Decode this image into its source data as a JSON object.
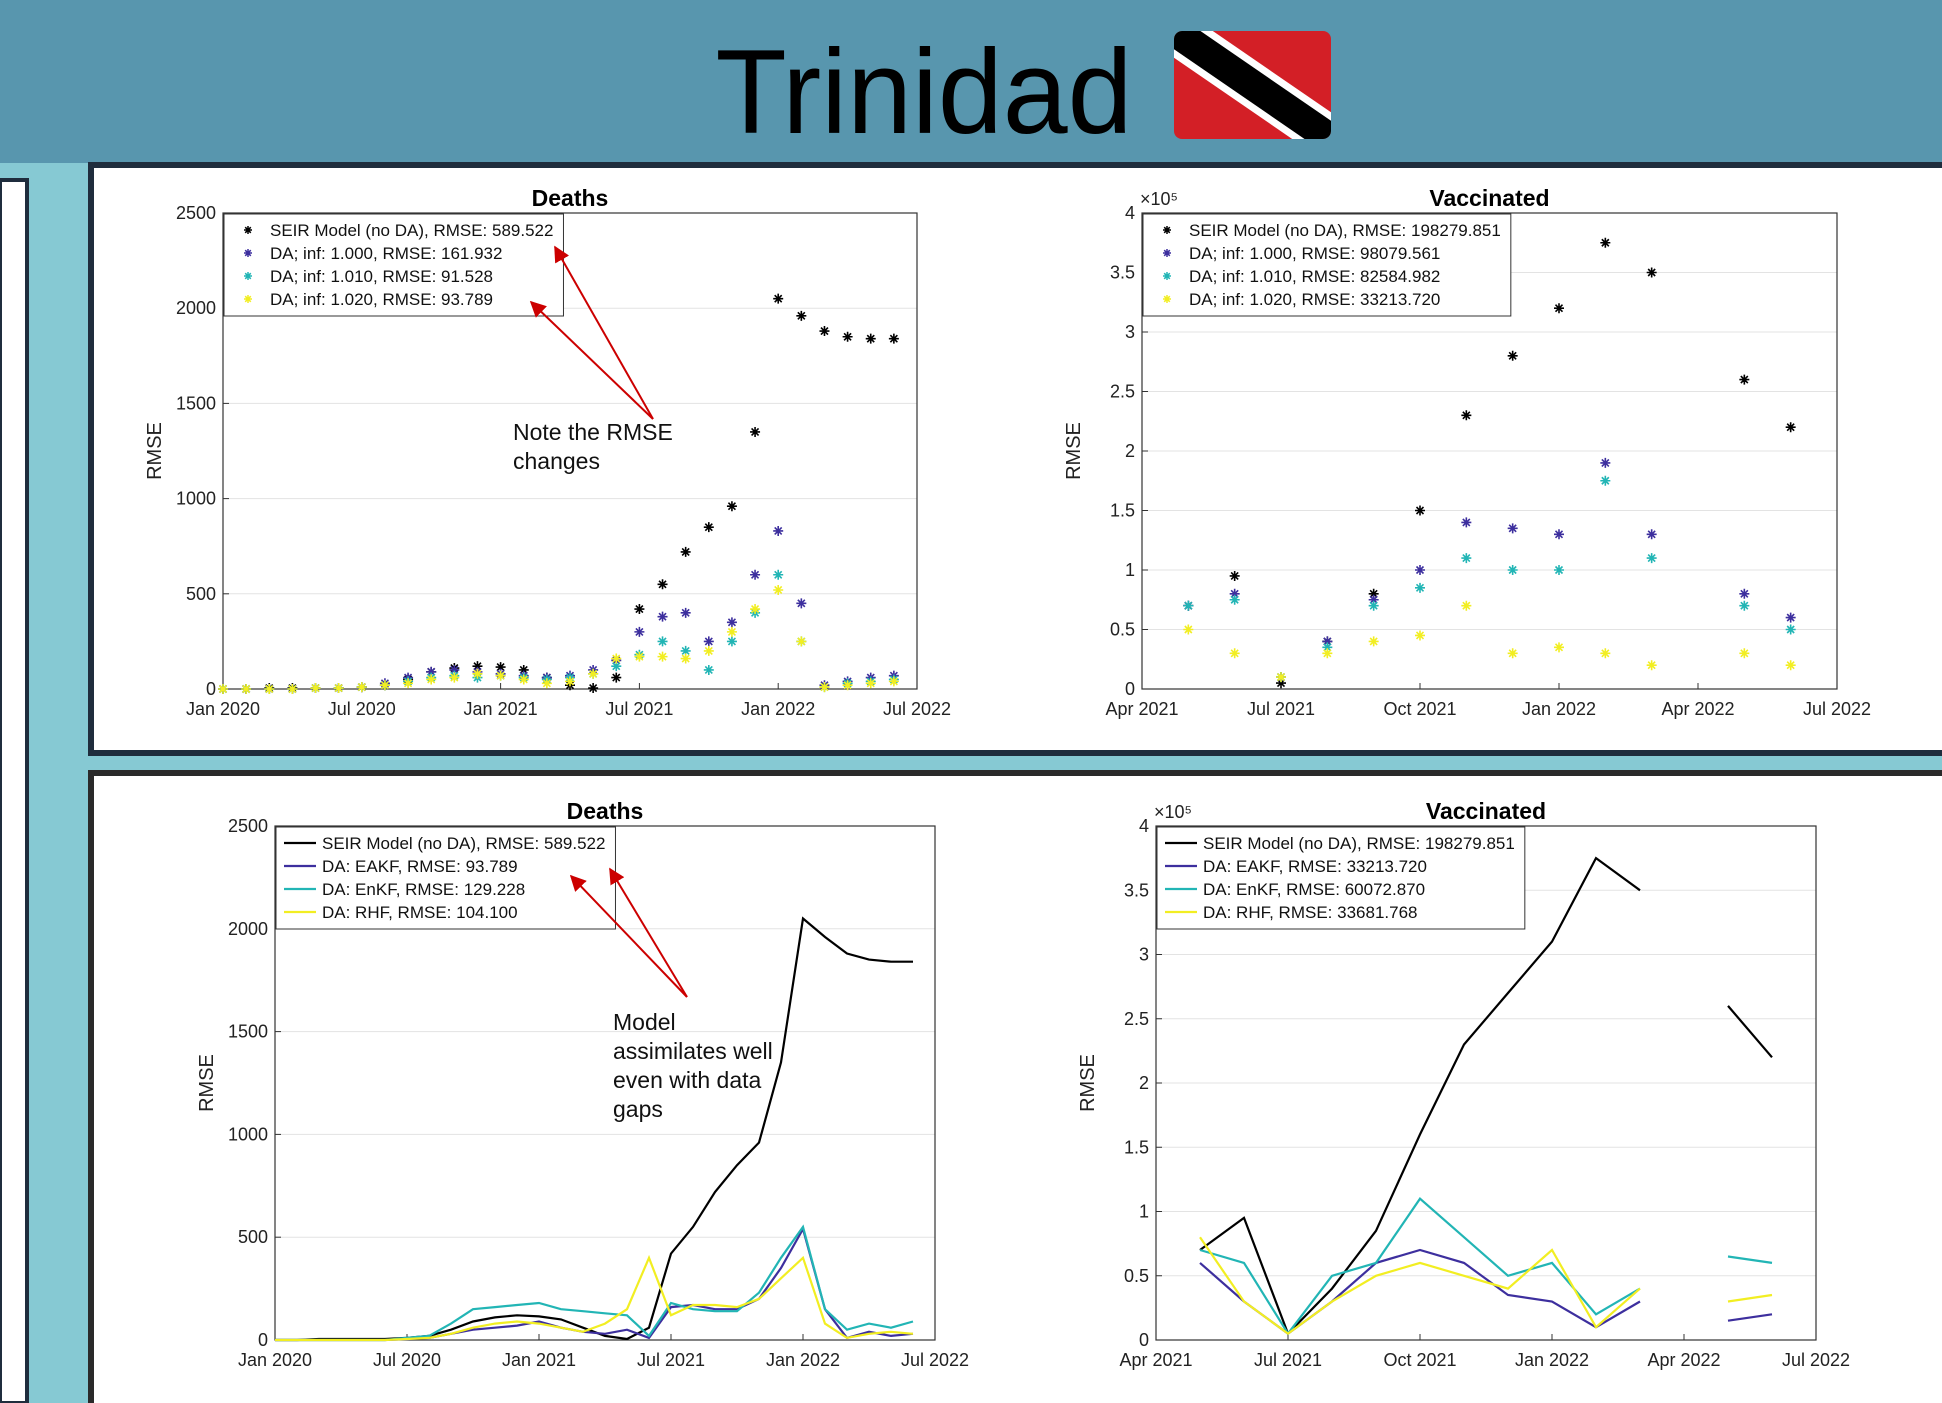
{
  "title": "Trinidad",
  "chart_data": [
    {
      "type": "scatter",
      "title": "Deaths",
      "ylabel": "RMSE",
      "annotation": "Note the RMSE changes",
      "x": [
        "2020-01",
        "2020-02",
        "2020-03",
        "2020-04",
        "2020-05",
        "2020-06",
        "2020-07",
        "2020-08",
        "2020-09",
        "2020-10",
        "2020-11",
        "2020-12",
        "2021-01",
        "2021-02",
        "2021-03",
        "2021-04",
        "2021-05",
        "2021-06",
        "2021-07",
        "2021-08",
        "2021-09",
        "2021-10",
        "2021-11",
        "2021-12",
        "2022-01",
        "2022-02",
        "2022-03",
        "2022-04",
        "2022-05",
        "2022-06"
      ],
      "xlim": [
        "2020-01",
        "2022-07"
      ],
      "xticks": [
        {
          "value": "2020-01",
          "label": "Jan 2020"
        },
        {
          "value": "2020-07",
          "label": "Jul 2020"
        },
        {
          "value": "2021-01",
          "label": "Jan 2021"
        },
        {
          "value": "2021-07",
          "label": "Jul 2021"
        },
        {
          "value": "2022-01",
          "label": "Jan 2022"
        },
        {
          "value": "2022-07",
          "label": "Jul 2022"
        }
      ],
      "ylim": [
        0,
        2500
      ],
      "yticks": [
        0,
        500,
        1000,
        1500,
        2000,
        2500
      ],
      "grid": true,
      "legend": "upper left",
      "series": [
        {
          "name": "SEIR Model (no DA), RMSE: 589.522",
          "color": "#000000",
          "values": [
            0,
            0,
            5,
            5,
            5,
            5,
            10,
            20,
            50,
            90,
            110,
            120,
            115,
            100,
            60,
            20,
            5,
            60,
            420,
            550,
            720,
            850,
            960,
            1350,
            2050,
            1960,
            1880,
            1850,
            1840,
            1840
          ]
        },
        {
          "name": "DA; inf: 1.000, RMSE: 161.932",
          "color": "#3d2f9e",
          "values": [
            0,
            0,
            0,
            0,
            5,
            5,
            10,
            30,
            60,
            90,
            100,
            90,
            80,
            70,
            60,
            70,
            100,
            150,
            300,
            380,
            400,
            250,
            350,
            600,
            830,
            450,
            20,
            40,
            60,
            70
          ]
        },
        {
          "name": "DA; inf: 1.010, RMSE: 91.528",
          "color": "#22b5b5",
          "values": [
            0,
            0,
            0,
            0,
            5,
            5,
            10,
            20,
            40,
            60,
            70,
            60,
            70,
            60,
            50,
            60,
            80,
            120,
            180,
            250,
            200,
            100,
            250,
            400,
            600,
            250,
            10,
            30,
            40,
            50
          ]
        },
        {
          "name": "DA; inf: 1.020, RMSE: 93.789",
          "color": "#f2ee22",
          "values": [
            0,
            0,
            0,
            0,
            5,
            5,
            10,
            20,
            30,
            50,
            60,
            80,
            70,
            50,
            30,
            40,
            80,
            160,
            170,
            170,
            160,
            200,
            300,
            420,
            520,
            250,
            10,
            20,
            30,
            40
          ]
        }
      ]
    },
    {
      "type": "scatter",
      "title": "Vaccinated",
      "ylabel": "RMSE",
      "y_multiplier": "×10⁵",
      "x": [
        "2021-05",
        "2021-06",
        "2021-07",
        "2021-08",
        "2021-09",
        "2021-10",
        "2021-11",
        "2021-12",
        "2022-01",
        "2022-02",
        "2022-03",
        "2022-04",
        "2022-05",
        "2022-06"
      ],
      "xlim": [
        "2021-04",
        "2022-07"
      ],
      "xticks": [
        {
          "value": "2021-04",
          "label": "Apr 2021"
        },
        {
          "value": "2021-07",
          "label": "Jul 2021"
        },
        {
          "value": "2021-10",
          "label": "Oct 2021"
        },
        {
          "value": "2022-01",
          "label": "Jan 2022"
        },
        {
          "value": "2022-04",
          "label": "Apr 2022"
        },
        {
          "value": "2022-07",
          "label": "Jul 2022"
        }
      ],
      "ylim": [
        0,
        4
      ],
      "yticks": [
        0,
        0.5,
        1,
        1.5,
        2,
        2.5,
        3,
        3.5,
        4
      ],
      "grid": true,
      "legend": "upper left",
      "series": [
        {
          "name": "SEIR Model (no DA), RMSE: 198279.851",
          "color": "#000000",
          "values": [
            0.7,
            0.95,
            0.05,
            0.4,
            0.8,
            1.5,
            2.3,
            2.8,
            3.2,
            3.75,
            3.5,
            null,
            2.6,
            2.2
          ]
        },
        {
          "name": "DA; inf: 1.000, RMSE: 98079.561",
          "color": "#3d2f9e",
          "values": [
            0.7,
            0.8,
            0.1,
            0.4,
            0.75,
            1.0,
            1.4,
            1.35,
            1.3,
            1.9,
            1.3,
            null,
            0.8,
            0.6
          ]
        },
        {
          "name": "DA; inf: 1.010, RMSE: 82584.982",
          "color": "#22b5b5",
          "values": [
            0.7,
            0.75,
            0.1,
            0.35,
            0.7,
            0.85,
            1.1,
            1.0,
            1.0,
            1.75,
            1.1,
            null,
            0.7,
            0.5
          ]
        },
        {
          "name": "DA; inf: 1.020, RMSE: 33213.720",
          "color": "#f2ee22",
          "values": [
            0.5,
            0.3,
            0.1,
            0.3,
            0.4,
            0.45,
            0.7,
            0.3,
            0.35,
            0.3,
            0.2,
            null,
            0.3,
            0.2
          ]
        }
      ]
    },
    {
      "type": "line",
      "title": "Deaths",
      "ylabel": "RMSE",
      "annotation": "Model assimilates well even with data gaps",
      "x": [
        "2020-01",
        "2020-02",
        "2020-03",
        "2020-04",
        "2020-05",
        "2020-06",
        "2020-07",
        "2020-08",
        "2020-09",
        "2020-10",
        "2020-11",
        "2020-12",
        "2021-01",
        "2021-02",
        "2021-03",
        "2021-04",
        "2021-05",
        "2021-06",
        "2021-07",
        "2021-08",
        "2021-09",
        "2021-10",
        "2021-11",
        "2021-12",
        "2022-01",
        "2022-02",
        "2022-03",
        "2022-04",
        "2022-05",
        "2022-06"
      ],
      "xlim": [
        "2020-01",
        "2022-07"
      ],
      "xticks": [
        {
          "value": "2020-01",
          "label": "Jan 2020"
        },
        {
          "value": "2020-07",
          "label": "Jul 2020"
        },
        {
          "value": "2021-01",
          "label": "Jan 2021"
        },
        {
          "value": "2021-07",
          "label": "Jul 2021"
        },
        {
          "value": "2022-01",
          "label": "Jan 2022"
        },
        {
          "value": "2022-07",
          "label": "Jul 2022"
        }
      ],
      "ylim": [
        0,
        2500
      ],
      "yticks": [
        0,
        500,
        1000,
        1500,
        2000,
        2500
      ],
      "grid": true,
      "legend": "upper left",
      "series": [
        {
          "name": "SEIR Model (no DA), RMSE: 589.522",
          "color": "#000000",
          "values": [
            0,
            0,
            5,
            5,
            5,
            5,
            10,
            20,
            50,
            90,
            110,
            120,
            115,
            100,
            60,
            20,
            5,
            60,
            420,
            550,
            720,
            850,
            960,
            1350,
            2050,
            1960,
            1880,
            1850,
            1840,
            1840
          ]
        },
        {
          "name": "DA: EAKF, RMSE: 93.789",
          "color": "#3d2f9e",
          "values": [
            0,
            0,
            0,
            0,
            0,
            0,
            5,
            10,
            30,
            50,
            60,
            70,
            90,
            60,
            40,
            30,
            50,
            10,
            160,
            170,
            150,
            150,
            200,
            350,
            540,
            150,
            10,
            40,
            20,
            30
          ]
        },
        {
          "name": "DA: EnKF, RMSE: 129.228",
          "color": "#22b5b5",
          "values": [
            0,
            0,
            0,
            0,
            0,
            0,
            10,
            20,
            80,
            150,
            160,
            170,
            180,
            150,
            140,
            130,
            120,
            20,
            180,
            150,
            140,
            140,
            230,
            400,
            550,
            150,
            50,
            80,
            60,
            90
          ]
        },
        {
          "name": "DA: RHF, RMSE: 104.100",
          "color": "#f2ee22",
          "values": [
            0,
            0,
            0,
            0,
            0,
            0,
            5,
            10,
            30,
            60,
            80,
            90,
            80,
            60,
            40,
            80,
            150,
            400,
            120,
            170,
            170,
            160,
            200,
            300,
            400,
            80,
            10,
            30,
            40,
            30
          ]
        }
      ]
    },
    {
      "type": "line",
      "title": "Vaccinated",
      "ylabel": "RMSE",
      "y_multiplier": "×10⁵",
      "x": [
        "2021-05",
        "2021-06",
        "2021-07",
        "2021-08",
        "2021-09",
        "2021-10",
        "2021-11",
        "2021-12",
        "2022-01",
        "2022-02",
        "2022-03",
        "2022-04",
        "2022-05",
        "2022-06"
      ],
      "xlim": [
        "2021-04",
        "2022-07"
      ],
      "xticks": [
        {
          "value": "2021-04",
          "label": "Apr 2021"
        },
        {
          "value": "2021-07",
          "label": "Jul 2021"
        },
        {
          "value": "2021-10",
          "label": "Oct 2021"
        },
        {
          "value": "2022-01",
          "label": "Jan 2022"
        },
        {
          "value": "2022-04",
          "label": "Apr 2022"
        },
        {
          "value": "2022-07",
          "label": "Jul 2022"
        }
      ],
      "ylim": [
        0,
        4
      ],
      "yticks": [
        0,
        0.5,
        1,
        1.5,
        2,
        2.5,
        3,
        3.5,
        4
      ],
      "grid": true,
      "legend": "upper left",
      "series": [
        {
          "name": "SEIR Model (no DA), RMSE: 198279.851",
          "color": "#000000",
          "values": [
            0.7,
            0.95,
            0.05,
            0.4,
            0.85,
            1.6,
            2.3,
            2.7,
            3.1,
            3.75,
            3.5,
            null,
            2.6,
            2.2
          ]
        },
        {
          "name": "DA: EAKF, RMSE: 33213.720",
          "color": "#3d2f9e",
          "values": [
            0.6,
            0.3,
            0.05,
            0.3,
            0.6,
            0.7,
            0.6,
            0.35,
            0.3,
            0.1,
            0.3,
            null,
            0.15,
            0.2
          ]
        },
        {
          "name": "DA: EnKF, RMSE: 60072.870",
          "color": "#22b5b5",
          "values": [
            0.7,
            0.6,
            0.05,
            0.5,
            0.6,
            1.1,
            0.8,
            0.5,
            0.6,
            0.2,
            0.4,
            null,
            0.65,
            0.6
          ]
        },
        {
          "name": "DA: RHF, RMSE: 33681.768",
          "color": "#f2ee22",
          "values": [
            0.8,
            0.3,
            0.05,
            0.3,
            0.5,
            0.6,
            0.5,
            0.4,
            0.7,
            0.1,
            0.4,
            null,
            0.3,
            0.35
          ]
        }
      ]
    }
  ]
}
